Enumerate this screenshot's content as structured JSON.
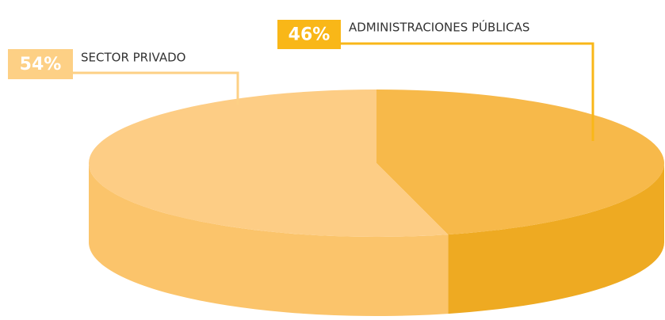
{
  "chart_data": {
    "type": "pie",
    "categories": [
      "ADMINISTRACIONES PÚBLICAS",
      "SECTOR PRIVADO"
    ],
    "values": [
      46,
      54
    ],
    "value_labels": [
      "46%",
      "54%"
    ],
    "colors": [
      "#f7b94a",
      "#fdcd85"
    ],
    "side_colors": [
      "#eeaa22",
      "#fbc46b"
    ],
    "label_colors": [
      "#f9b718",
      "#fdd085"
    ]
  }
}
